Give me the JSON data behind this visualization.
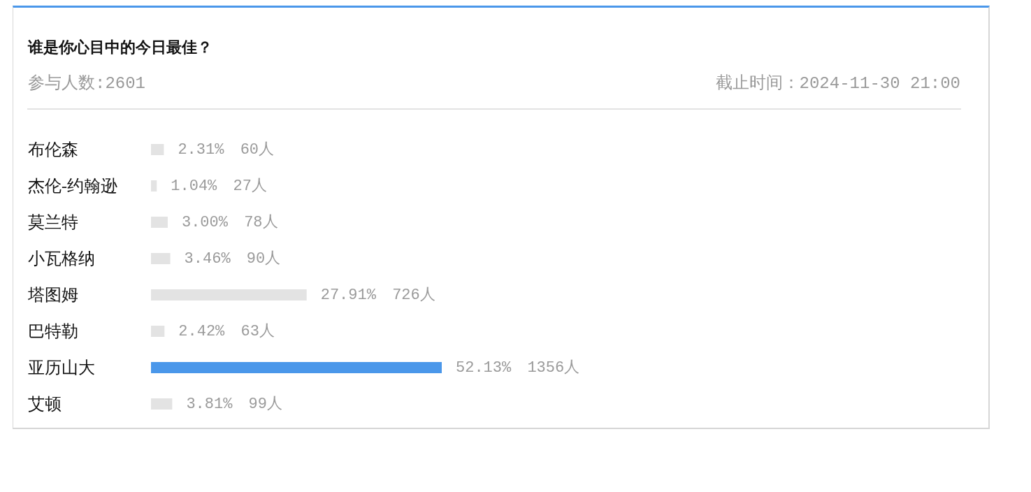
{
  "chart_data": {
    "type": "bar",
    "orientation": "horizontal",
    "title": "谁是你心目中的今日最佳？",
    "subtitle": "参与人数:2601",
    "annotations": [
      "截止时间：2024-11-30 21:00"
    ],
    "categories": [
      "布伦森",
      "杰伦-约翰逊",
      "莫兰特",
      "小瓦格纳",
      "塔图姆",
      "巴特勒",
      "亚历山大",
      "艾顿"
    ],
    "values": [
      2.31,
      1.04,
      3.0,
      3.46,
      27.91,
      2.42,
      52.13,
      3.81
    ],
    "colors": [
      "#e3e3e3",
      "#e3e3e3",
      "#e3e3e3",
      "#e3e3e3",
      "#e3e3e3",
      "#e3e3e3",
      "#4a97ea",
      "#e3e3e3"
    ],
    "value_labels": [
      "2.31% 60人",
      "1.04% 27人",
      "3.00% 78人",
      "3.46% 90人",
      "27.91% 726人",
      "2.42% 63人",
      "52.13% 1356人",
      "3.81% 99人"
    ],
    "tick_labels": "y"
  }
}
